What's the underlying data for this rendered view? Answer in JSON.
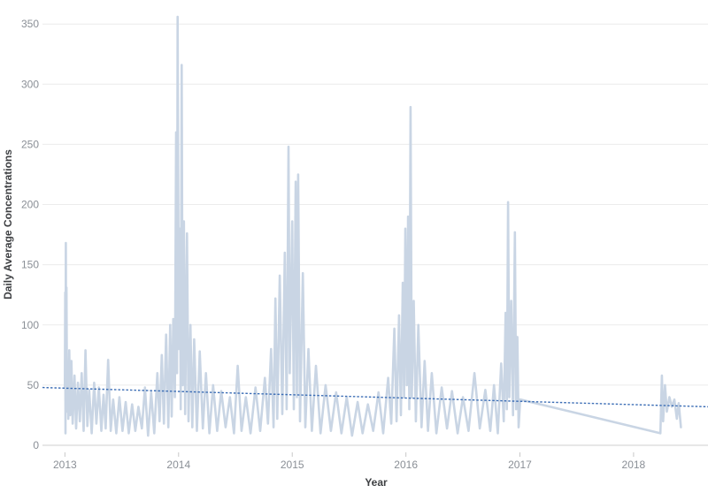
{
  "chart_data": {
    "type": "line",
    "title": "",
    "xlabel": "Year",
    "ylabel": "Daily Average Concentrations",
    "x_ticks": [
      "2013",
      "2014",
      "2015",
      "2016",
      "2017",
      "2018"
    ],
    "y_ticks": [
      "0",
      "50",
      "100",
      "150",
      "200",
      "250",
      "300",
      "350"
    ],
    "xlim": [
      "2012-10-21",
      "2018-08-28"
    ],
    "ylim": [
      0,
      360
    ],
    "grid": "horizontal",
    "legend": "none",
    "colors": {
      "series": "#c9d5e4",
      "trend": "#3b6db5",
      "grid": "#ececec",
      "zero_line": "#cfcfcf"
    },
    "series": [
      {
        "type": "line",
        "points": [
          [
            "2013-01-01",
            48
          ],
          [
            "2013-01-02",
            127
          ],
          [
            "2013-01-03",
            10
          ],
          [
            "2013-01-04",
            168
          ],
          [
            "2013-01-05",
            60
          ],
          [
            "2013-01-06",
            131
          ],
          [
            "2013-01-08",
            28
          ],
          [
            "2013-01-10",
            68
          ],
          [
            "2013-01-12",
            22
          ],
          [
            "2013-01-15",
            79
          ],
          [
            "2013-01-18",
            25
          ],
          [
            "2013-01-22",
            70
          ],
          [
            "2013-01-26",
            18
          ],
          [
            "2013-02-01",
            58
          ],
          [
            "2013-02-06",
            14
          ],
          [
            "2013-02-12",
            52
          ],
          [
            "2013-02-18",
            20
          ],
          [
            "2013-02-24",
            60
          ],
          [
            "2013-03-02",
            12
          ],
          [
            "2013-03-08",
            79
          ],
          [
            "2013-03-14",
            16
          ],
          [
            "2013-03-20",
            46
          ],
          [
            "2013-03-28",
            10
          ],
          [
            "2013-04-05",
            52
          ],
          [
            "2013-04-12",
            18
          ],
          [
            "2013-04-20",
            48
          ],
          [
            "2013-04-28",
            12
          ],
          [
            "2013-05-05",
            42
          ],
          [
            "2013-05-12",
            14
          ],
          [
            "2013-05-20",
            71
          ],
          [
            "2013-05-28",
            12
          ],
          [
            "2013-06-05",
            38
          ],
          [
            "2013-06-15",
            10
          ],
          [
            "2013-06-25",
            40
          ],
          [
            "2013-07-05",
            12
          ],
          [
            "2013-07-15",
            36
          ],
          [
            "2013-07-25",
            10
          ],
          [
            "2013-08-05",
            34
          ],
          [
            "2013-08-15",
            12
          ],
          [
            "2013-08-25",
            32
          ],
          [
            "2013-09-05",
            14
          ],
          [
            "2013-09-15",
            48
          ],
          [
            "2013-09-25",
            8
          ],
          [
            "2013-10-05",
            44
          ],
          [
            "2013-10-15",
            10
          ],
          [
            "2013-10-25",
            60
          ],
          [
            "2013-11-01",
            20
          ],
          [
            "2013-11-08",
            75
          ],
          [
            "2013-11-15",
            18
          ],
          [
            "2013-11-22",
            92
          ],
          [
            "2013-11-29",
            15
          ],
          [
            "2013-12-05",
            100
          ],
          [
            "2013-12-10",
            24
          ],
          [
            "2013-12-15",
            105
          ],
          [
            "2013-12-20",
            40
          ],
          [
            "2013-12-24",
            260
          ],
          [
            "2013-12-27",
            60
          ],
          [
            "2013-12-29",
            356
          ],
          [
            "2014-01-02",
            80
          ],
          [
            "2014-01-05",
            180
          ],
          [
            "2014-01-08",
            30
          ],
          [
            "2014-01-11",
            316
          ],
          [
            "2014-01-14",
            50
          ],
          [
            "2014-01-18",
            186
          ],
          [
            "2014-01-22",
            26
          ],
          [
            "2014-01-28",
            176
          ],
          [
            "2014-02-02",
            20
          ],
          [
            "2014-02-08",
            100
          ],
          [
            "2014-02-14",
            15
          ],
          [
            "2014-02-20",
            88
          ],
          [
            "2014-03-01",
            12
          ],
          [
            "2014-03-10",
            78
          ],
          [
            "2014-03-20",
            14
          ],
          [
            "2014-03-30",
            60
          ],
          [
            "2014-04-10",
            10
          ],
          [
            "2014-04-22",
            50
          ],
          [
            "2014-05-05",
            12
          ],
          [
            "2014-05-18",
            45
          ],
          [
            "2014-06-01",
            15
          ],
          [
            "2014-06-15",
            40
          ],
          [
            "2014-06-28",
            10
          ],
          [
            "2014-07-10",
            66
          ],
          [
            "2014-07-22",
            12
          ],
          [
            "2014-08-05",
            40
          ],
          [
            "2014-08-20",
            10
          ],
          [
            "2014-09-05",
            48
          ],
          [
            "2014-09-20",
            12
          ],
          [
            "2014-10-05",
            56
          ],
          [
            "2014-10-15",
            18
          ],
          [
            "2014-10-25",
            80
          ],
          [
            "2014-11-02",
            15
          ],
          [
            "2014-11-08",
            122
          ],
          [
            "2014-11-14",
            22
          ],
          [
            "2014-11-22",
            141
          ],
          [
            "2014-11-30",
            26
          ],
          [
            "2014-12-08",
            160
          ],
          [
            "2014-12-14",
            30
          ],
          [
            "2014-12-20",
            248
          ],
          [
            "2014-12-24",
            60
          ],
          [
            "2015-01-01",
            186
          ],
          [
            "2015-01-06",
            30
          ],
          [
            "2015-01-12",
            219
          ],
          [
            "2015-01-16",
            40
          ],
          [
            "2015-01-20",
            225
          ],
          [
            "2015-01-26",
            20
          ],
          [
            "2015-02-04",
            143
          ],
          [
            "2015-02-12",
            15
          ],
          [
            "2015-02-22",
            80
          ],
          [
            "2015-03-05",
            12
          ],
          [
            "2015-03-18",
            66
          ],
          [
            "2015-04-02",
            10
          ],
          [
            "2015-04-18",
            50
          ],
          [
            "2015-05-05",
            12
          ],
          [
            "2015-05-22",
            44
          ],
          [
            "2015-06-08",
            10
          ],
          [
            "2015-06-25",
            40
          ],
          [
            "2015-07-12",
            8
          ],
          [
            "2015-07-30",
            36
          ],
          [
            "2015-08-15",
            10
          ],
          [
            "2015-09-01",
            34
          ],
          [
            "2015-09-18",
            12
          ],
          [
            "2015-10-05",
            44
          ],
          [
            "2015-10-20",
            10
          ],
          [
            "2015-11-05",
            56
          ],
          [
            "2015-11-15",
            18
          ],
          [
            "2015-11-25",
            97
          ],
          [
            "2015-12-02",
            20
          ],
          [
            "2015-12-10",
            108
          ],
          [
            "2015-12-16",
            25
          ],
          [
            "2015-12-22",
            135
          ],
          [
            "2015-12-26",
            40
          ],
          [
            "2015-12-30",
            180
          ],
          [
            "2016-01-04",
            50
          ],
          [
            "2016-01-08",
            190
          ],
          [
            "2016-01-12",
            30
          ],
          [
            "2016-01-16",
            281
          ],
          [
            "2016-01-20",
            40
          ],
          [
            "2016-01-26",
            120
          ],
          [
            "2016-02-02",
            20
          ],
          [
            "2016-02-10",
            100
          ],
          [
            "2016-02-20",
            15
          ],
          [
            "2016-03-01",
            70
          ],
          [
            "2016-03-12",
            12
          ],
          [
            "2016-03-24",
            60
          ],
          [
            "2016-04-08",
            10
          ],
          [
            "2016-04-25",
            48
          ],
          [
            "2016-05-12",
            14
          ],
          [
            "2016-05-28",
            45
          ],
          [
            "2016-06-15",
            10
          ],
          [
            "2016-07-02",
            40
          ],
          [
            "2016-07-20",
            12
          ],
          [
            "2016-08-08",
            60
          ],
          [
            "2016-08-25",
            14
          ],
          [
            "2016-09-12",
            46
          ],
          [
            "2016-09-28",
            12
          ],
          [
            "2016-10-10",
            50
          ],
          [
            "2016-10-22",
            10
          ],
          [
            "2016-11-02",
            68
          ],
          [
            "2016-11-10",
            20
          ],
          [
            "2016-11-16",
            110
          ],
          [
            "2016-11-20",
            30
          ],
          [
            "2016-11-24",
            202
          ],
          [
            "2016-11-28",
            40
          ],
          [
            "2016-12-04",
            120
          ],
          [
            "2016-12-10",
            25
          ],
          [
            "2016-12-16",
            177
          ],
          [
            "2016-12-20",
            30
          ],
          [
            "2016-12-24",
            90
          ],
          [
            "2016-12-28",
            15
          ],
          [
            "2017-01-02",
            38
          ],
          [
            "2018-03-28",
            10
          ],
          [
            "2018-04-02",
            58
          ],
          [
            "2018-04-06",
            20
          ],
          [
            "2018-04-12",
            50
          ],
          [
            "2018-04-18",
            28
          ],
          [
            "2018-04-26",
            40
          ],
          [
            "2018-05-04",
            32
          ],
          [
            "2018-05-12",
            38
          ],
          [
            "2018-05-20",
            22
          ],
          [
            "2018-05-26",
            35
          ],
          [
            "2018-06-02",
            15
          ]
        ]
      }
    ],
    "trendline": {
      "style": "dotted",
      "from": [
        "2012-10-21",
        48
      ],
      "to": [
        "2018-08-28",
        32
      ]
    }
  }
}
